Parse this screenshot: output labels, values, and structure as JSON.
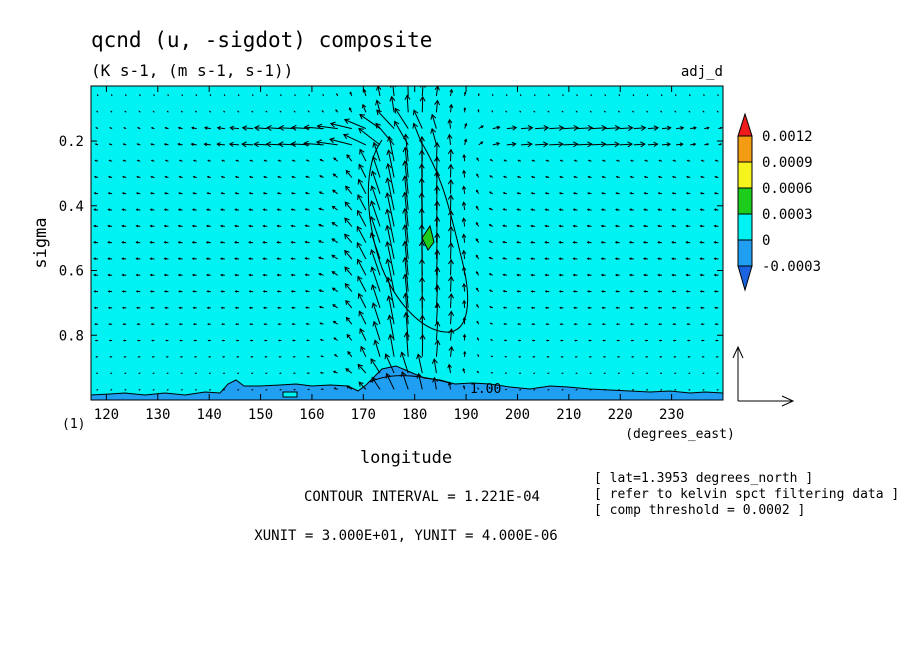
{
  "chart_data": {
    "type": "heatmap",
    "title": "qcnd (u, -sigdot) composite",
    "subtitle": "(K s-1, (m s-1, s-1))",
    "dataset_tag": "adj_d",
    "xlabel": "longitude",
    "xunits": "(degrees_east)",
    "ylabel": "sigma",
    "xlim": [
      117,
      240
    ],
    "ylim": [
      1.0,
      0.03
    ],
    "x_ticks": [
      120,
      130,
      140,
      150,
      160,
      170,
      180,
      190,
      200,
      210,
      220,
      230
    ],
    "y_ticks": [
      0.2,
      0.4,
      0.6,
      0.8
    ],
    "panel_index": "(1)",
    "colorbar": {
      "levels": [
        "0.0012",
        "0.0009",
        "0.0006",
        "0.0003",
        "0",
        "-0.0003"
      ],
      "colors": [
        "#ee1c1c",
        "#f39b12",
        "#f5f51d",
        "#1ecc1e",
        "#00f2f2",
        "#1f9ef2",
        "#1a64e0"
      ]
    },
    "contour_label": "1.00",
    "contour_interval_text": "CONTOUR INTERVAL = 1.221E-04",
    "unit_text": "XUNIT = 3.000E+01, YUNIT = 4.000E-06",
    "notes": [
      "[ lat=1.3953 degrees_north ]",
      "[ refer to kelvin spct filtering data ]",
      "[ comp threshold = 0.0002 ]"
    ]
  }
}
